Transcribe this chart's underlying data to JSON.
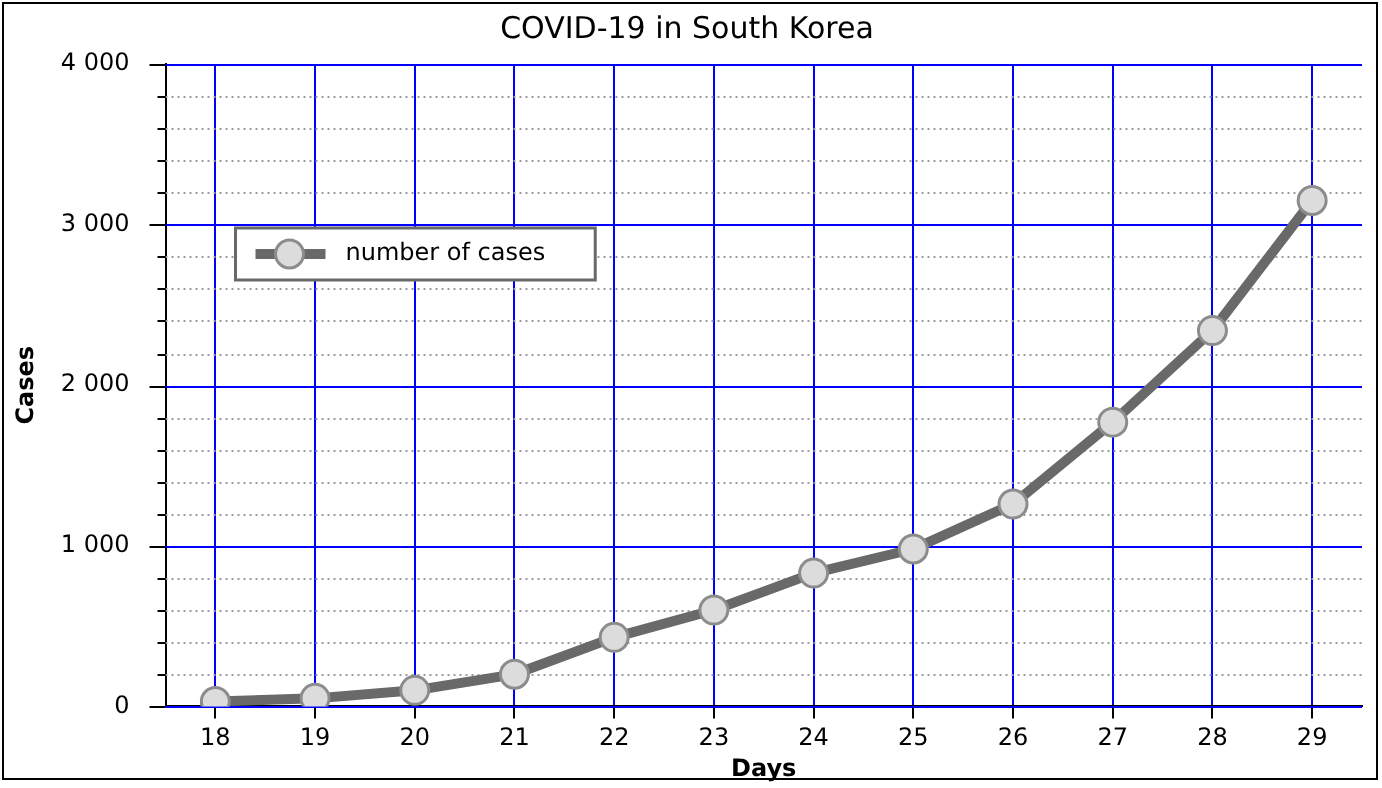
{
  "chart_data": {
    "type": "line",
    "title": "COVID-19 in South Korea",
    "xlabel": "Days",
    "ylabel": "Cases",
    "categories": [
      "18",
      "19",
      "20",
      "21",
      "22",
      "23",
      "24",
      "25",
      "26",
      "27",
      "28",
      "29"
    ],
    "series": [
      {
        "name": "number of cases",
        "color": "#696969",
        "values": [
          30,
          50,
          100,
          200,
          430,
          600,
          830,
          980,
          1260,
          1770,
          2340,
          3150
        ]
      }
    ],
    "ylim": [
      0,
      4000
    ],
    "yticks": [
      0,
      {
        "value": 200,
        "label": null
      },
      {
        "value": 400,
        "label": null
      },
      {
        "value": 600,
        "label": null
      },
      {
        "value": 800,
        "label": null
      },
      {
        "value": 1000,
        "label": "1 000"
      },
      {
        "value": 1200,
        "label": null
      },
      {
        "value": 1400,
        "label": null
      },
      {
        "value": 1600,
        "label": null
      },
      {
        "value": 1800,
        "label": null
      },
      {
        "value": 2000,
        "label": "2 000"
      },
      {
        "value": 2200,
        "label": null
      },
      {
        "value": 2400,
        "label": null
      },
      {
        "value": 2600,
        "label": null
      },
      {
        "value": 2800,
        "label": null
      },
      {
        "value": 3000,
        "label": "3 000"
      },
      {
        "value": 3200,
        "label": null
      },
      {
        "value": 3400,
        "label": null
      },
      {
        "value": 3600,
        "label": null
      },
      {
        "value": 3800,
        "label": null
      },
      {
        "value": 4000,
        "label": "4 000"
      }
    ],
    "grid": true,
    "legend": "top left",
    "marker": "circle",
    "line_style": "solid"
  }
}
